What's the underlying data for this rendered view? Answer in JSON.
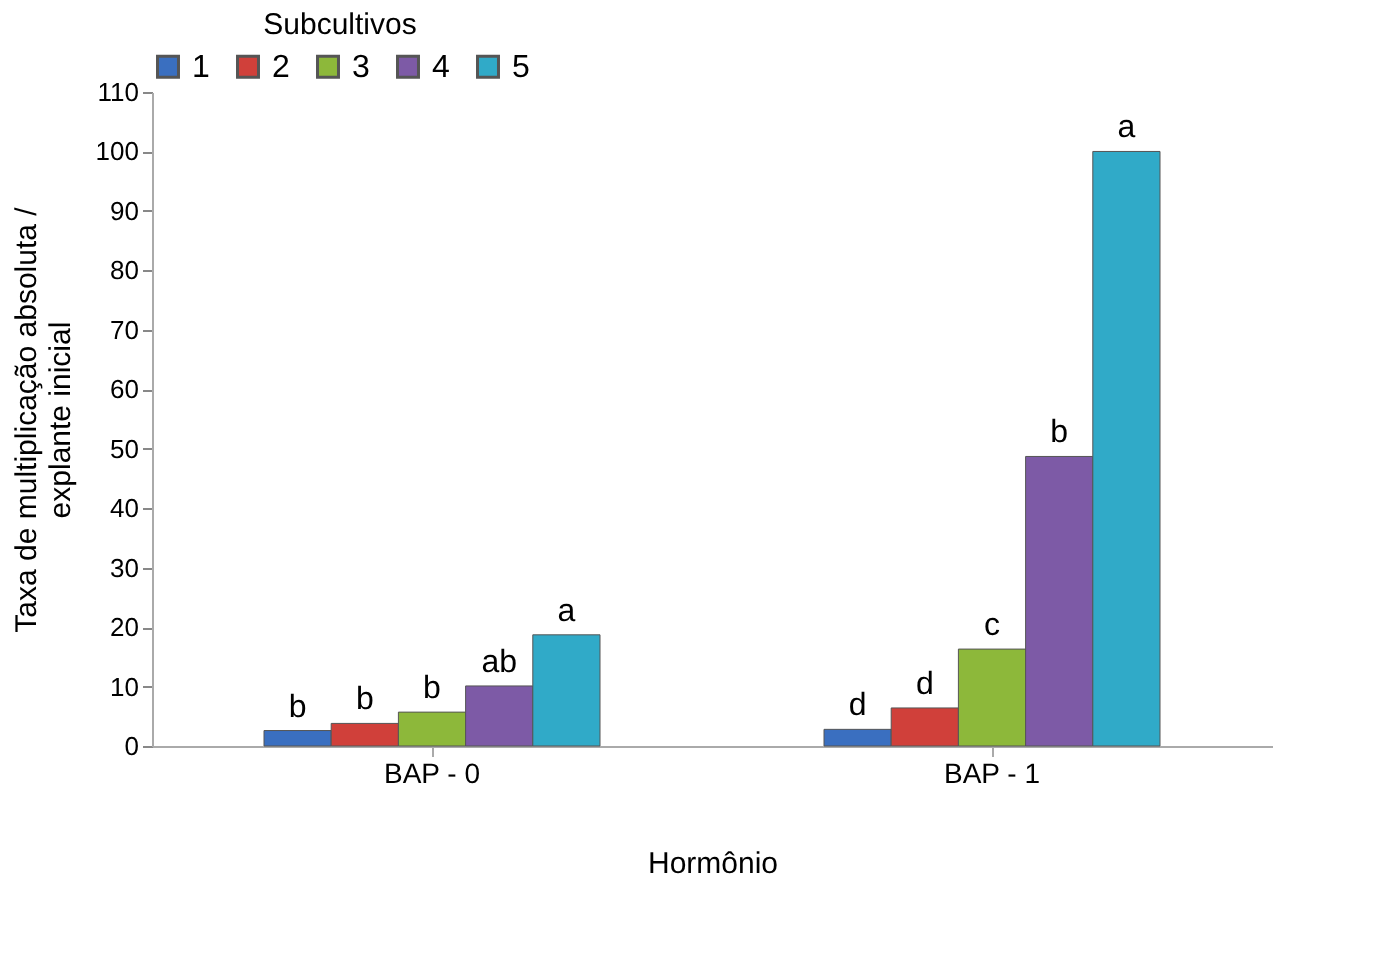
{
  "chart_data": {
    "type": "bar",
    "xlabel": "Hormônio",
    "ylabel": "Taxa de multiplicação absoluta / explante inicial",
    "legend_title": "Subcultivos",
    "legend": "top",
    "categories": [
      "BAP - 0",
      "BAP - 1"
    ],
    "series": [
      {
        "name": "1",
        "color": "#3a6fc0",
        "values": [
          2.6,
          2.8
        ],
        "value_labels": [
          "b",
          "d"
        ]
      },
      {
        "name": "2",
        "color": "#d0403a",
        "values": [
          3.8,
          6.4
        ],
        "value_labels": [
          "b",
          "d"
        ]
      },
      {
        "name": "3",
        "color": "#8db83a",
        "values": [
          5.7,
          16.3
        ],
        "value_labels": [
          "b",
          "c"
        ]
      },
      {
        "name": "4",
        "color": "#7d5aa6",
        "values": [
          10.1,
          48.7
        ],
        "value_labels": [
          "ab",
          "b"
        ]
      },
      {
        "name": "5",
        "color": "#30aac8",
        "values": [
          18.7,
          100
        ],
        "value_labels": [
          "a",
          "a"
        ]
      }
    ],
    "ylim": [
      0,
      110
    ],
    "yticks": [
      0,
      10,
      20,
      30,
      40,
      50,
      60,
      70,
      80,
      90,
      100,
      110
    ],
    "grid": false
  }
}
